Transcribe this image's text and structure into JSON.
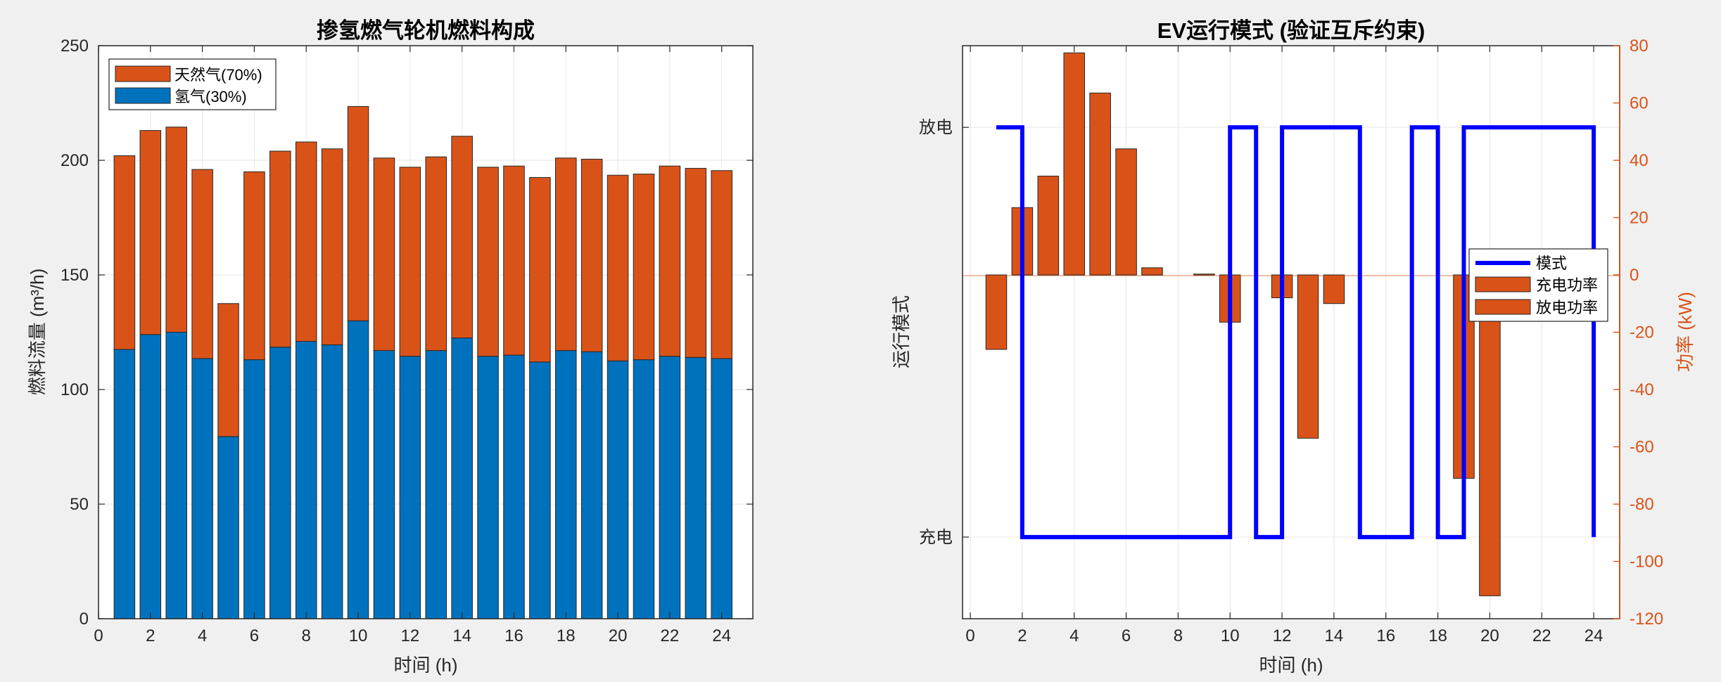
{
  "chart_data": [
    {
      "type": "bar",
      "stacked": true,
      "title": "掺氢燃气轮机燃料构成",
      "xlabel": "时间 (h)",
      "ylabel": "燃料流量 (m³/h)",
      "xlim": [
        0,
        25.2
      ],
      "ylim": [
        0,
        250
      ],
      "xticks": [
        0,
        2,
        4,
        6,
        8,
        10,
        12,
        14,
        16,
        18,
        20,
        22,
        24
      ],
      "yticks": [
        0,
        50,
        100,
        150,
        200,
        250
      ],
      "grid": true,
      "legend_position": "top-left",
      "categories": [
        1,
        2,
        3,
        4,
        5,
        6,
        7,
        8,
        9,
        10,
        11,
        12,
        13,
        14,
        15,
        16,
        17,
        18,
        19,
        20,
        21,
        22,
        23,
        24
      ],
      "series": [
        {
          "name": "氢气(30%)",
          "color": "#0072BD",
          "values": [
            117.5,
            124,
            125,
            113.5,
            79.5,
            113,
            118.5,
            121,
            119.5,
            130,
            117,
            114.5,
            117,
            122.5,
            114.5,
            115,
            112,
            117,
            116.5,
            112.5,
            113,
            114.5,
            114,
            113.5
          ]
        },
        {
          "name": "天然气(70%)",
          "color": "#D95319",
          "values": [
            84.5,
            89,
            89.5,
            82.5,
            58,
            82,
            85.5,
            87,
            85.5,
            93.5,
            84,
            82.5,
            84.5,
            88,
            82.5,
            82.5,
            80.5,
            84,
            84,
            81,
            81,
            83,
            82.5,
            82
          ]
        }
      ]
    },
    {
      "type": "bar+line",
      "title": "EV运行模式 (验证互斥约束)",
      "xlabel": "时间 (h)",
      "ylabel_left": "运行模式",
      "ylabel_right": "功率 (kW)",
      "xlim": [
        -0.3,
        25
      ],
      "xticks": [
        0,
        2,
        4,
        6,
        8,
        10,
        12,
        14,
        16,
        18,
        20,
        22,
        24
      ],
      "left_yticklabels": [
        "放电",
        "充电"
      ],
      "right_ylim": [
        -120,
        80
      ],
      "right_yticks": [
        80,
        60,
        40,
        20,
        0,
        -20,
        -40,
        -60,
        -80,
        -100,
        -120
      ],
      "grid": true,
      "legend_position": "right",
      "legend": [
        {
          "name": "模式",
          "kind": "line",
          "color": "#0000FF"
        },
        {
          "name": "充电功率",
          "kind": "bar",
          "color": "#D95319"
        },
        {
          "name": "放电功率",
          "kind": "bar",
          "color": "#D95319"
        }
      ],
      "mode_line": {
        "name": "模式",
        "color": "#0000FF",
        "levels": {
          "放电": 1,
          "充电": 0
        },
        "points": [
          [
            1,
            1
          ],
          [
            2,
            1
          ],
          [
            2,
            0
          ],
          [
            10,
            0
          ],
          [
            10,
            1
          ],
          [
            11,
            1
          ],
          [
            11,
            0
          ],
          [
            12,
            0
          ],
          [
            12,
            1
          ],
          [
            15,
            1
          ],
          [
            15,
            0
          ],
          [
            17,
            0
          ],
          [
            17,
            1
          ],
          [
            18,
            1
          ],
          [
            18,
            0
          ],
          [
            19,
            0
          ],
          [
            19,
            1
          ],
          [
            24,
            1
          ],
          [
            24,
            0
          ]
        ]
      },
      "power": {
        "color": "#D95319",
        "hours": [
          1,
          2,
          3,
          4,
          5,
          6,
          7,
          8,
          9,
          10,
          11,
          12,
          13,
          14,
          15,
          16,
          17,
          18,
          19,
          20,
          21,
          22,
          23,
          24
        ],
        "values": [
          -26,
          23.5,
          34.5,
          77.5,
          63.5,
          44,
          2.5,
          0,
          0.3,
          -16.5,
          0,
          -8,
          -57,
          -10,
          0,
          0,
          0,
          0,
          -71,
          -112,
          0,
          0,
          0,
          0
        ]
      }
    }
  ]
}
